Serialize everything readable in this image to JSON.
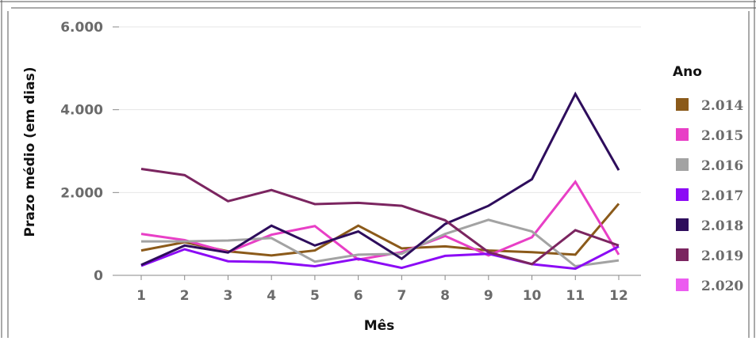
{
  "chart_data": {
    "type": "line",
    "xlabel": "Mês",
    "ylabel": "Prazo médio (em dias)",
    "x": [
      1,
      2,
      3,
      4,
      5,
      6,
      7,
      8,
      9,
      10,
      11,
      12
    ],
    "x_tick_labels": [
      "1",
      "2",
      "3",
      "4",
      "5",
      "6",
      "7",
      "8",
      "9",
      "10",
      "11",
      "12"
    ],
    "ylim": [
      0,
      6000
    ],
    "y_ticks": [
      0,
      2000,
      4000,
      6000
    ],
    "y_tick_labels": [
      "0",
      "2.000",
      "4.000",
      "6.000"
    ],
    "grid": true,
    "legend": {
      "title": "Ano",
      "position": "right"
    },
    "series": [
      {
        "name": "2.014",
        "color": "#8b5a1a",
        "values": [
          600,
          800,
          580,
          480,
          600,
          1200,
          650,
          700,
          600,
          560,
          500,
          1730
        ]
      },
      {
        "name": "2.015",
        "color": "#e83fc6",
        "values": [
          1000,
          850,
          560,
          980,
          1190,
          380,
          560,
          950,
          480,
          920,
          2260,
          500
        ]
      },
      {
        "name": "2.016",
        "color": "#a3a3a3",
        "values": [
          820,
          820,
          840,
          900,
          330,
          500,
          520,
          1000,
          1340,
          1060,
          220,
          360
        ]
      },
      {
        "name": "2.017",
        "color": "#8c0bf5",
        "values": [
          230,
          630,
          340,
          320,
          220,
          400,
          180,
          470,
          520,
          270,
          160,
          700
        ]
      },
      {
        "name": "2.018",
        "color": "#2e0d5c",
        "values": [
          250,
          720,
          550,
          1200,
          720,
          1060,
          400,
          1240,
          1680,
          2320,
          4380,
          2540
        ]
      },
      {
        "name": "2.019",
        "color": "#7b2560",
        "values": [
          2570,
          2420,
          1790,
          2060,
          1720,
          1750,
          1680,
          1330,
          560,
          270,
          1090,
          720
        ]
      },
      {
        "name": "2.020",
        "color": "#ec5cf0",
        "values": [
          null,
          null,
          null,
          null,
          null,
          null,
          null,
          null,
          null,
          null,
          null,
          null
        ]
      }
    ]
  }
}
